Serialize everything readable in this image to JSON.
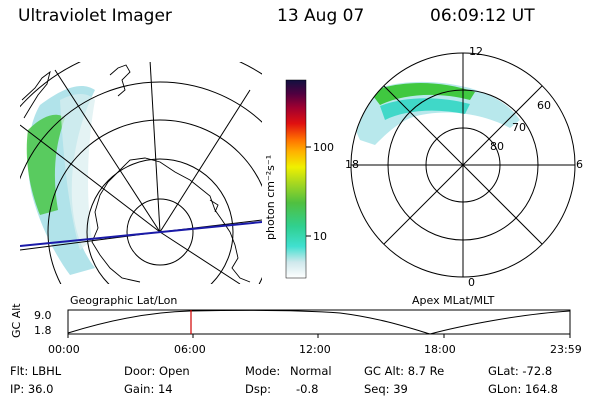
{
  "header": {
    "title": "Ultraviolet Imager",
    "date": "13 Aug 07",
    "time": "06:09:12 UT"
  },
  "colorbar": {
    "unit_label": "photon cm⁻²s⁻¹",
    "ticks": [
      "100",
      "10"
    ]
  },
  "left_panel": {
    "label": "Geographic Lat/Lon"
  },
  "right_panel": {
    "label": "Apex MLat/MLT",
    "mlt_labels": [
      "12",
      "18",
      "6",
      "0"
    ],
    "lat_labels": [
      "60",
      "70",
      "80"
    ]
  },
  "timeline": {
    "ylabel": "GC Alt",
    "y_ticks": [
      "9.0",
      "1.8"
    ],
    "x_ticks": [
      "00:00",
      "06:00",
      "12:00",
      "18:00",
      "23:59"
    ],
    "marker_time": "06:09"
  },
  "info": {
    "flt": "Flt: LBHL",
    "ip": "IP: 36.0",
    "door": "Door: Open",
    "gain": "Gain: 14",
    "mode_label": "Mode:",
    "mode_value": "Normal",
    "dsp_label": "Dsp:",
    "dsp_value": "-0.8",
    "gc_alt": "GC Alt: 8.7 Re",
    "seq": "Seq: 39",
    "glat": "GLat: -72.8",
    "glon": "GLon: 164.8"
  },
  "colors": {
    "marker": "#d00000",
    "track": "#1a1aa8"
  }
}
